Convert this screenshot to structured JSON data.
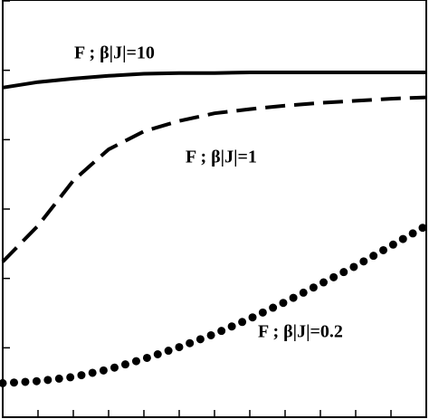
{
  "chart_data": {
    "type": "line",
    "x": [
      0,
      1,
      2,
      3,
      4,
      5,
      6,
      7,
      8,
      9,
      10,
      11,
      12
    ],
    "series": [
      {
        "name": "F ; β|J|=10",
        "color": "#000000",
        "style": "solid",
        "values": [
          4.75,
          4.83,
          4.88,
          4.92,
          4.95,
          4.96,
          4.96,
          4.97,
          4.97,
          4.97,
          4.97,
          4.97,
          4.97
        ]
      },
      {
        "name": "F ; β|J|=1",
        "color": "#000000",
        "style": "dashed",
        "values": [
          2.24,
          2.76,
          3.41,
          3.86,
          4.12,
          4.27,
          4.38,
          4.44,
          4.49,
          4.53,
          4.56,
          4.59,
          4.61
        ]
      },
      {
        "name": "F ; β|J|=0.2",
        "color": "#000000",
        "style": "dotted",
        "values": [
          0.49,
          0.52,
          0.58,
          0.69,
          0.84,
          1.01,
          1.2,
          1.42,
          1.66,
          1.92,
          2.18,
          2.47,
          2.76
        ]
      }
    ],
    "xlim": [
      0,
      12
    ],
    "xticks": [
      0,
      1,
      2,
      3,
      4,
      5,
      6,
      7,
      8,
      9,
      10,
      11,
      12
    ],
    "ylim": [
      0,
      6
    ],
    "yticks": [
      0,
      1,
      2,
      3,
      4,
      5,
      6
    ]
  }
}
